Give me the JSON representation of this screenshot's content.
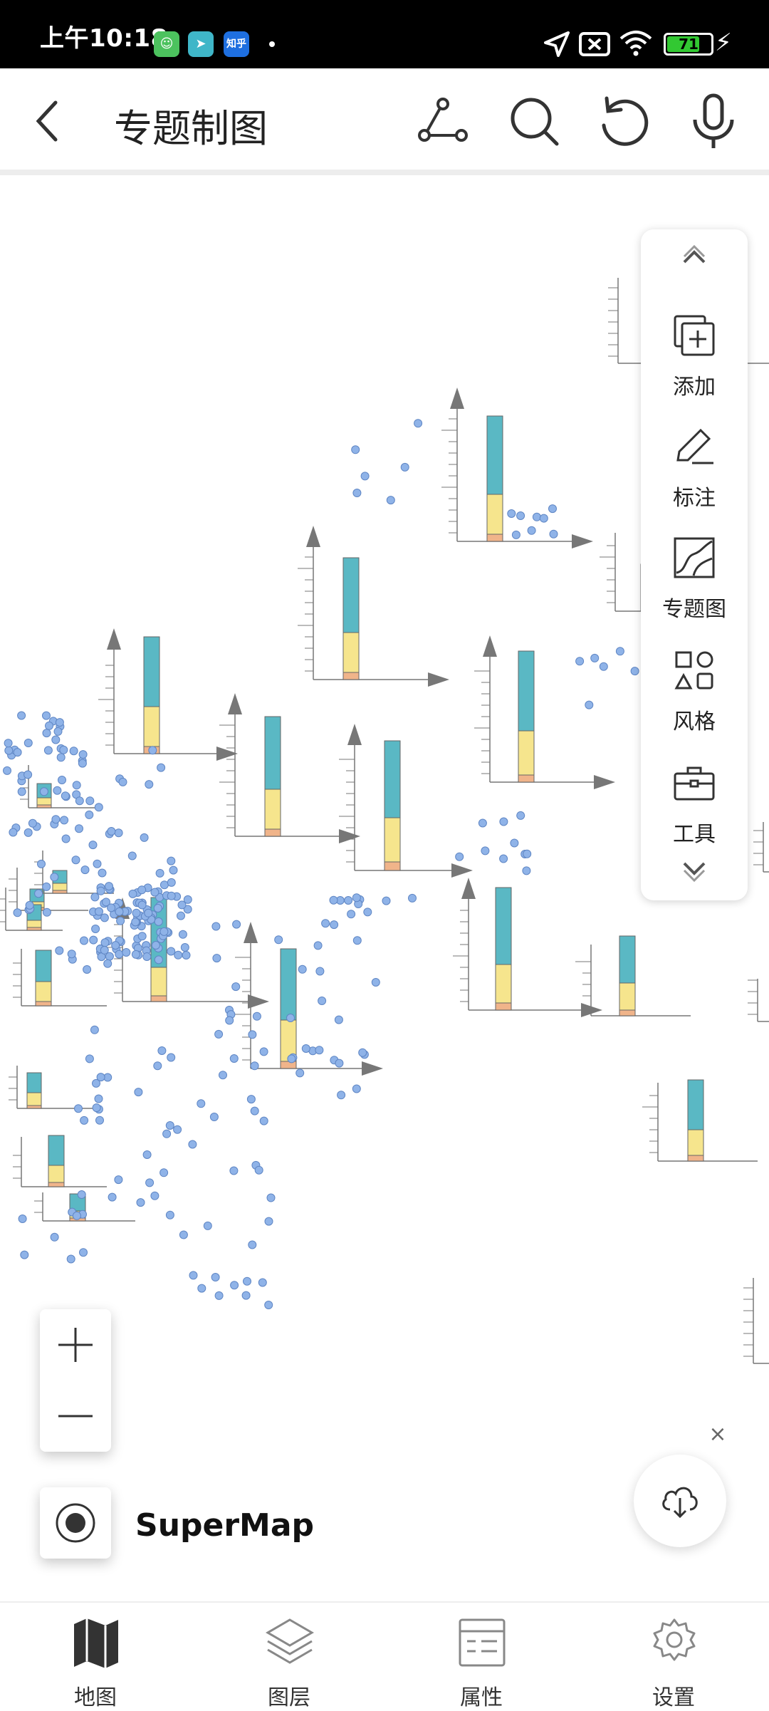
{
  "status_bar": {
    "time": "上午10:18",
    "apps": [
      {
        "icon": "cat-app-icon",
        "color": "#4cc25e",
        "glyph": "☺"
      },
      {
        "icon": "paper-plane-app-icon",
        "color": "#3fb6c8",
        "glyph": "➤"
      },
      {
        "icon": "zhihu-app-icon",
        "color": "#1e6fe0",
        "glyph": "知乎"
      }
    ],
    "battery": "71"
  },
  "toolbar": {
    "title": "专题制图",
    "icons": [
      "back-icon",
      "route-icon",
      "search-icon",
      "undo-icon",
      "microphone-icon"
    ]
  },
  "side_panel": {
    "items": [
      {
        "label": "添加",
        "icon": "add-layer-icon"
      },
      {
        "label": "标注",
        "icon": "pencil-icon"
      },
      {
        "label": "专题图",
        "icon": "thematic-map-icon"
      },
      {
        "label": "风格",
        "icon": "shapes-icon"
      },
      {
        "label": "工具",
        "icon": "toolbox-icon"
      }
    ]
  },
  "map": {
    "brand": "SuperMap",
    "colors": {
      "teal": "#5ab8c4",
      "yellow": "#f6e58d",
      "orange": "#f0b48a",
      "point": "#8fb3e8",
      "axis": "#777777"
    }
  },
  "bottom_nav": {
    "items": [
      {
        "label": "地图",
        "icon": "map-icon"
      },
      {
        "label": "图层",
        "icon": "layers-icon"
      },
      {
        "label": "属性",
        "icon": "attribute-table-icon"
      },
      {
        "label": "设置",
        "icon": "settings-icon"
      }
    ]
  }
}
